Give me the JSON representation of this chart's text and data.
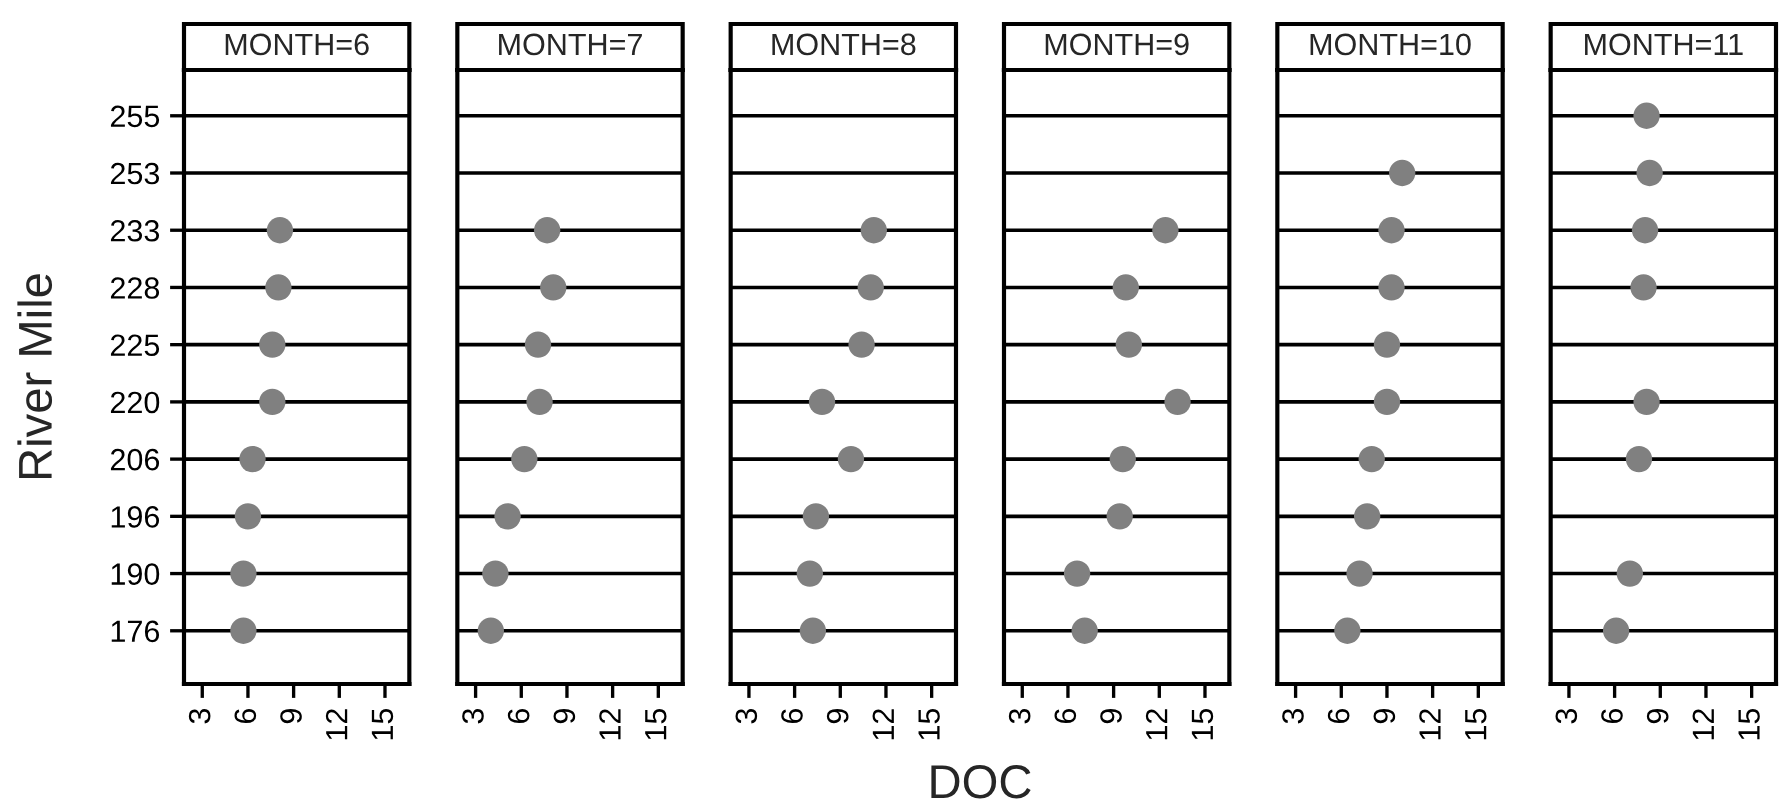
{
  "chart_data": [
    {
      "type": "scatter",
      "orientation": "horizontal",
      "title": "MONTH=6",
      "ylabel": "River Mile",
      "categories": [
        "255",
        "253",
        "233",
        "228",
        "225",
        "220",
        "206",
        "196",
        "190",
        "176"
      ],
      "values": [
        null,
        null,
        8.1,
        8.0,
        7.6,
        7.6,
        6.3,
        6.0,
        5.7,
        5.7
      ],
      "color": "#808080",
      "marker": "circle",
      "grid": "y",
      "xlim": [
        1.8,
        16.6
      ],
      "xticks": [
        3,
        6,
        9,
        12,
        15
      ]
    },
    {
      "type": "scatter",
      "orientation": "horizontal",
      "title": "MONTH=7",
      "categories": [
        "255",
        "253",
        "233",
        "228",
        "225",
        "220",
        "206",
        "196",
        "190",
        "176"
      ],
      "values": [
        null,
        null,
        7.7,
        8.1,
        7.1,
        7.2,
        6.2,
        5.1,
        4.3,
        4.0
      ],
      "color": "#808080",
      "marker": "circle",
      "grid": "y",
      "xlim": [
        1.8,
        16.6
      ],
      "xticks": [
        3,
        6,
        9,
        12,
        15
      ],
      "tick_labels": "x"
    },
    {
      "type": "scatter",
      "orientation": "horizontal",
      "title": "MONTH=8",
      "categories": [
        "255",
        "253",
        "233",
        "228",
        "225",
        "220",
        "206",
        "196",
        "190",
        "176"
      ],
      "values": [
        null,
        null,
        11.2,
        11.0,
        10.4,
        7.8,
        9.7,
        7.4,
        7.0,
        7.2
      ],
      "color": "#808080",
      "marker": "circle",
      "grid": "y",
      "xlim": [
        1.8,
        16.6
      ],
      "xticks": [
        3,
        6,
        9,
        12,
        15
      ],
      "tick_labels": "x"
    },
    {
      "type": "scatter",
      "orientation": "horizontal",
      "title": "MONTH=9",
      "xlabel": "DOC",
      "categories": [
        "255",
        "253",
        "233",
        "228",
        "225",
        "220",
        "206",
        "196",
        "190",
        "176"
      ],
      "values": [
        null,
        null,
        12.4,
        9.8,
        10.0,
        13.2,
        9.6,
        9.4,
        6.6,
        7.1
      ],
      "color": "#808080",
      "marker": "circle",
      "grid": "y",
      "xlim": [
        1.8,
        16.6
      ],
      "xticks": [
        3,
        6,
        9,
        12,
        15
      ],
      "tick_labels": "x"
    },
    {
      "type": "scatter",
      "orientation": "horizontal",
      "title": "MONTH=10",
      "categories": [
        "255",
        "253",
        "233",
        "228",
        "225",
        "220",
        "206",
        "196",
        "190",
        "176"
      ],
      "values": [
        null,
        10.0,
        9.3,
        9.3,
        9.0,
        9.0,
        8.0,
        7.7,
        7.2,
        6.4
      ],
      "color": "#808080",
      "marker": "circle",
      "grid": "y",
      "xlim": [
        1.8,
        16.6
      ],
      "xticks": [
        3,
        6,
        9,
        12,
        15
      ],
      "tick_labels": "x"
    },
    {
      "type": "scatter",
      "orientation": "horizontal",
      "title": "MONTH=11",
      "categories": [
        "255",
        "253",
        "233",
        "228",
        "225",
        "220",
        "206",
        "196",
        "190",
        "176"
      ],
      "values": [
        8.1,
        8.3,
        8.0,
        7.9,
        null,
        8.1,
        7.6,
        null,
        7.0,
        6.1
      ],
      "color": "#808080",
      "marker": "circle",
      "grid": "y",
      "xlim": [
        1.8,
        16.6
      ],
      "xticks": [
        3,
        6,
        9,
        12,
        15
      ],
      "tick_labels": "x"
    }
  ]
}
